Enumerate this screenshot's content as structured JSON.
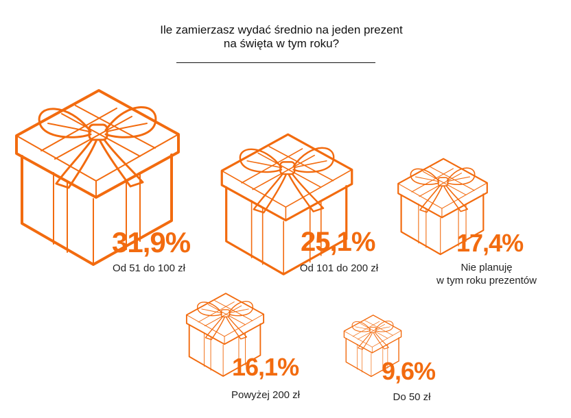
{
  "title": {
    "line1": "Ile zamierzasz wydać średnio na jeden prezent",
    "line2": "na święta w tym roku?"
  },
  "colors": {
    "accent": "#f26b0f",
    "text": "#222222"
  },
  "chart_data": {
    "type": "bar",
    "title": "Ile zamierzasz wydać średnio na jeden prezent na święta w tym roku?",
    "categories": [
      "Od 51 do 100 zł",
      "Od 101 do 200 zł",
      "Nie planuję w tym roku prezentów",
      "Powyżej 200 zł",
      "Do 50 zł"
    ],
    "values": [
      31.9,
      25.1,
      17.4,
      16.1,
      9.6
    ],
    "unit": "%"
  },
  "items": [
    {
      "value": "31,9%",
      "label": [
        "Od 51 do 100 zł"
      ]
    },
    {
      "value": "25,1%",
      "label": [
        "Od 101 do 200 zł"
      ]
    },
    {
      "value": "17,4%",
      "label": [
        "Nie planuję",
        "w tym roku prezentów"
      ]
    },
    {
      "value": "16,1%",
      "label": [
        "Powyżej 200 zł"
      ]
    },
    {
      "value": "9,6%",
      "label": [
        "Do 50 zł"
      ]
    }
  ]
}
